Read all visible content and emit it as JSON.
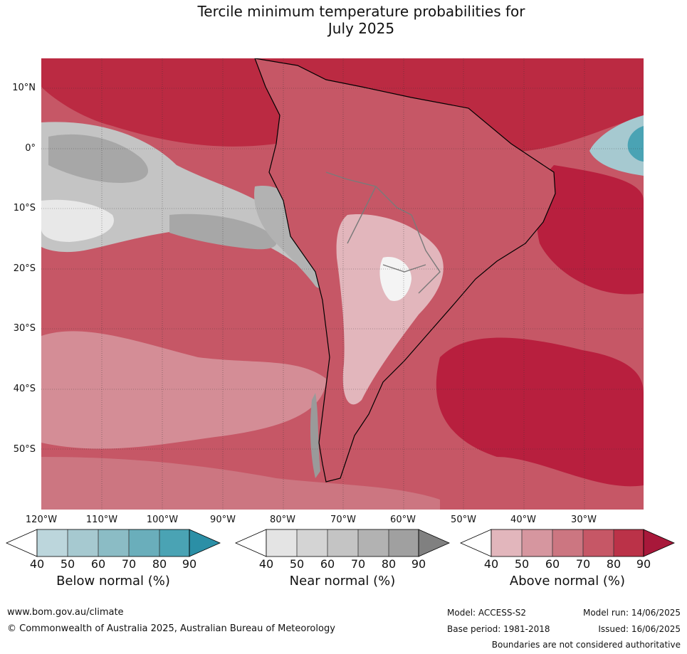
{
  "title_line1": "Tercile minimum temperature probabilities for",
  "title_line2": "July 2025",
  "lat_labels": [
    "10°N",
    "0°",
    "10°S",
    "20°S",
    "30°S",
    "40°S",
    "50°S"
  ],
  "lon_labels": [
    "120°W",
    "110°W",
    "100°W",
    "90°W",
    "80°W",
    "70°W",
    "60°W",
    "50°W",
    "40°W",
    "30°W"
  ],
  "colorbars": [
    {
      "label": "Below normal (%)",
      "ticks": [
        "40",
        "50",
        "60",
        "70",
        "80",
        "90"
      ],
      "colors": [
        "#ffffff",
        "#bcd6dc",
        "#a6c9d0",
        "#8bbcc5",
        "#6aaebb",
        "#4aa3b4",
        "#2b8fa6"
      ]
    },
    {
      "label": "Near normal (%)",
      "ticks": [
        "40",
        "50",
        "60",
        "70",
        "80",
        "90"
      ],
      "colors": [
        "#ffffff",
        "#e4e4e4",
        "#d4d4d4",
        "#c4c4c4",
        "#b2b2b2",
        "#a0a0a0",
        "#808080"
      ]
    },
    {
      "label": "Above normal (%)",
      "ticks": [
        "40",
        "50",
        "60",
        "70",
        "80",
        "90"
      ],
      "colors": [
        "#ffffff",
        "#e2b6bc",
        "#d6969f",
        "#cc7681",
        "#c65766",
        "#bb3248",
        "#a8183a"
      ]
    }
  ],
  "footer": {
    "website": "www.bom.gov.au/climate",
    "copyright": "© Commonwealth of Australia 2025, Australian Bureau of Meteorology",
    "model": "Model: ACCESS-S2",
    "base_period": "Base period: 1981-2018",
    "model_run": "Model run: 14/06/2025",
    "issued": "Issued: 16/06/2025",
    "boundaries_note": "Boundaries are not considered authoritative"
  }
}
